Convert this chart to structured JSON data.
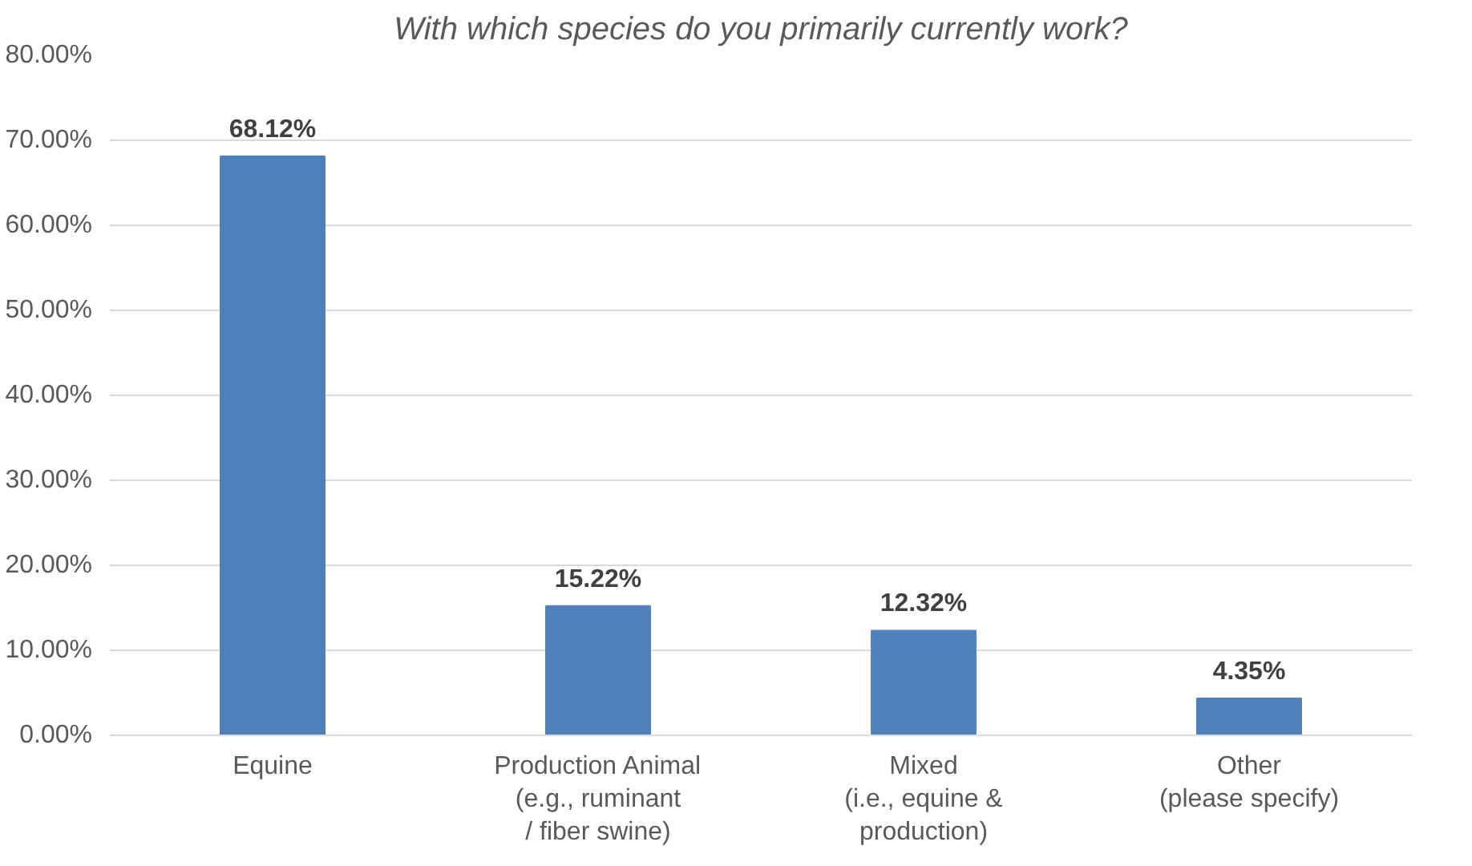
{
  "chart_data": {
    "type": "bar",
    "title": "With which species do you primarily currently work?",
    "categories": [
      "Equine",
      "Production Animal\n(e.g., ruminant\n/ fiber swine)",
      "Mixed\n(i.e., equine &\nproduction)",
      "Other\n(please specify)"
    ],
    "values": [
      68.12,
      15.22,
      12.32,
      4.35
    ],
    "value_labels": [
      "68.12%",
      "15.22%",
      "12.32%",
      "4.35%"
    ],
    "color": "#4f81bd",
    "ylim": [
      0,
      80
    ],
    "yticks": [
      {
        "value": 0,
        "label": "0.00%"
      },
      {
        "value": 10,
        "label": "10.00%"
      },
      {
        "value": 20,
        "label": "20.00%"
      },
      {
        "value": 30,
        "label": "30.00%"
      },
      {
        "value": 40,
        "label": "40.00%"
      },
      {
        "value": 50,
        "label": "50.00%"
      },
      {
        "value": 60,
        "label": "60.00%"
      },
      {
        "value": 70,
        "label": "70.00%"
      },
      {
        "value": 80,
        "label": "80.00%"
      }
    ],
    "grid": "y"
  }
}
